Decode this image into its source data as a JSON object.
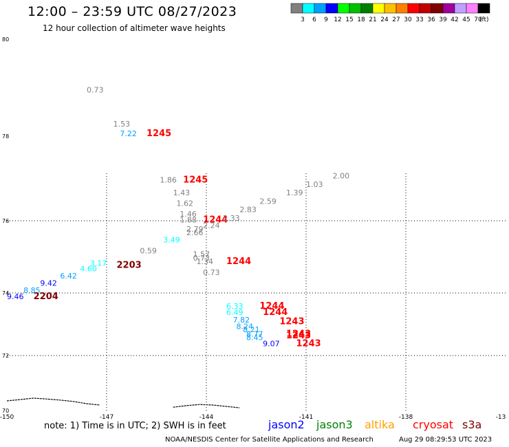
{
  "header": {
    "title": "12:00 – 23:59 UTC 08/27/2023",
    "subtitle": "12 hour collection of altimeter wave heights"
  },
  "colorbar": {
    "colors": [
      "#808080",
      "#00ffff",
      "#00a0ff",
      "#0000ff",
      "#00ff00",
      "#00c000",
      "#008000",
      "#ffff00",
      "#ffc000",
      "#ff8000",
      "#ff0000",
      "#c00000",
      "#800000",
      "#a000a0",
      "#c0a0ff",
      "#ff80ff",
      "#000000"
    ],
    "labels": [
      "3",
      "6",
      "9",
      "12",
      "15",
      "18",
      "21",
      "24",
      "27",
      "30",
      "33",
      "36",
      "39",
      "42",
      "45",
      "70",
      "(ft)"
    ]
  },
  "map": {
    "lat_labels": [
      {
        "lat": 80,
        "text": "80"
      },
      {
        "lat": 78,
        "text": "78"
      },
      {
        "lat": 76,
        "text": "76"
      },
      {
        "lat": 74,
        "text": "74"
      },
      {
        "lat": 72,
        "text": "72"
      },
      {
        "lat": 70,
        "text": "70"
      }
    ],
    "lon_labels": [
      {
        "lon": -150,
        "text": "-150"
      },
      {
        "lon": -147,
        "text": "-147"
      },
      {
        "lon": -144,
        "text": "-144"
      },
      {
        "lon": -141,
        "text": "-141"
      },
      {
        "lon": -138,
        "text": "-138"
      },
      {
        "lon": -135,
        "text": "-13"
      }
    ],
    "grid_lons": [
      -147,
      -144,
      -141,
      -138
    ],
    "grid_lats": [
      76,
      74,
      72
    ]
  },
  "observations": [
    {
      "text": "0.73",
      "lon": -147.6,
      "lat": 78.9,
      "color": "#808080"
    },
    {
      "text": "1.53",
      "lon": -146.8,
      "lat": 78.2,
      "color": "#808080"
    },
    {
      "text": "7.22",
      "lon": -146.6,
      "lat": 78.0,
      "color": "#00a0ff"
    },
    {
      "text": "1245",
      "lon": -145.8,
      "lat": 78.0,
      "color": "#ff0000",
      "time": true
    },
    {
      "text": "1.86",
      "lon": -145.4,
      "lat": 76.9,
      "color": "#808080"
    },
    {
      "text": "1245",
      "lon": -144.7,
      "lat": 76.9,
      "color": "#ff0000",
      "time": true
    },
    {
      "text": "1.43",
      "lon": -145.0,
      "lat": 76.6,
      "color": "#808080"
    },
    {
      "text": "1.62",
      "lon": -144.9,
      "lat": 76.35,
      "color": "#808080"
    },
    {
      "text": "1.46",
      "lon": -144.8,
      "lat": 76.1,
      "color": "#808080"
    },
    {
      "text": "1.88",
      "lon": -144.8,
      "lat": 75.95,
      "color": "#808080"
    },
    {
      "text": "1244",
      "lon": -144.1,
      "lat": 75.95,
      "color": "#ff0000",
      "time": true
    },
    {
      "text": "2.33",
      "lon": -143.5,
      "lat": 76.0,
      "color": "#808080"
    },
    {
      "text": "2.24",
      "lon": -144.1,
      "lat": 75.8,
      "color": "#808080"
    },
    {
      "text": "2.79",
      "lon": -144.6,
      "lat": 75.7,
      "color": "#808080"
    },
    {
      "text": "2.66",
      "lon": -144.6,
      "lat": 75.6,
      "color": "#808080"
    },
    {
      "text": "3.49",
      "lon": -145.3,
      "lat": 75.4,
      "color": "#00ffff"
    },
    {
      "text": "2.83",
      "lon": -143.0,
      "lat": 76.2,
      "color": "#808080"
    },
    {
      "text": "2.59",
      "lon": -142.4,
      "lat": 76.4,
      "color": "#808080"
    },
    {
      "text": "1.39",
      "lon": -141.6,
      "lat": 76.6,
      "color": "#808080"
    },
    {
      "text": "1.03",
      "lon": -141.0,
      "lat": 76.8,
      "color": "#808080"
    },
    {
      "text": "2.00",
      "lon": -140.2,
      "lat": 77.0,
      "color": "#808080"
    },
    {
      "text": "0.59",
      "lon": -146.0,
      "lat": 75.1,
      "color": "#808080"
    },
    {
      "text": "1.57",
      "lon": -144.4,
      "lat": 75.0,
      "color": "#808080"
    },
    {
      "text": "0.73",
      "lon": -144.4,
      "lat": 74.9,
      "color": "#808080"
    },
    {
      "text": "1.34",
      "lon": -144.3,
      "lat": 74.8,
      "color": "#808080"
    },
    {
      "text": "1244",
      "lon": -143.4,
      "lat": 74.8,
      "color": "#ff0000",
      "time": true
    },
    {
      "text": "0.73",
      "lon": -144.1,
      "lat": 74.5,
      "color": "#808080"
    },
    {
      "text": "3.17",
      "lon": -147.5,
      "lat": 74.75,
      "color": "#00ffff"
    },
    {
      "text": "4.60",
      "lon": -147.8,
      "lat": 74.6,
      "color": "#00ffff"
    },
    {
      "text": "2203",
      "lon": -146.7,
      "lat": 74.7,
      "color": "#800000",
      "time": true
    },
    {
      "text": "6.42",
      "lon": -148.4,
      "lat": 74.4,
      "color": "#00a0ff"
    },
    {
      "text": "9.42",
      "lon": -149.0,
      "lat": 74.2,
      "color": "#0000ff"
    },
    {
      "text": "8.85",
      "lon": -149.5,
      "lat": 74.0,
      "color": "#00a0ff"
    },
    {
      "text": "9.46",
      "lon": -150.0,
      "lat": 73.8,
      "color": "#0000ff"
    },
    {
      "text": "2204",
      "lon": -149.2,
      "lat": 73.8,
      "color": "#800000",
      "time": true
    },
    {
      "text": "6.33",
      "lon": -143.4,
      "lat": 73.5,
      "color": "#00ffff"
    },
    {
      "text": "1244",
      "lon": -142.4,
      "lat": 73.5,
      "color": "#ff0000",
      "time": true
    },
    {
      "text": "6.49",
      "lon": -143.4,
      "lat": 73.3,
      "color": "#00ffff"
    },
    {
      "text": "1244",
      "lon": -142.3,
      "lat": 73.3,
      "color": "#ff0000",
      "time": true
    },
    {
      "text": "7.82",
      "lon": -143.2,
      "lat": 73.05,
      "color": "#00a0ff"
    },
    {
      "text": "1243",
      "lon": -141.8,
      "lat": 73.0,
      "color": "#ff0000",
      "time": true
    },
    {
      "text": "8.24",
      "lon": -143.1,
      "lat": 72.85,
      "color": "#00a0ff"
    },
    {
      "text": "8.21",
      "lon": -142.9,
      "lat": 72.75,
      "color": "#00a0ff"
    },
    {
      "text": "8.77",
      "lon": -142.8,
      "lat": 72.6,
      "color": "#00a0ff"
    },
    {
      "text": "1243",
      "lon": -141.6,
      "lat": 72.6,
      "color": "#ff0000",
      "time": true
    },
    {
      "text": "8.45",
      "lon": -142.8,
      "lat": 72.5,
      "color": "#00a0ff"
    },
    {
      "text": "1243",
      "lon": -141.6,
      "lat": 72.55,
      "color": "#ff0000",
      "time": true
    },
    {
      "text": "9.07",
      "lon": -142.3,
      "lat": 72.3,
      "color": "#0000ff"
    },
    {
      "text": "1243",
      "lon": -141.3,
      "lat": 72.3,
      "color": "#ff0000",
      "time": true
    }
  ],
  "coastline": [
    [
      -150.0,
      70.35
    ],
    [
      -149.6,
      70.4
    ],
    [
      -149.2,
      70.45
    ],
    [
      -148.8,
      70.42
    ],
    [
      -148.4,
      70.38
    ],
    [
      -148.0,
      70.33
    ],
    [
      -147.6,
      70.25
    ],
    [
      -147.2,
      70.2
    ]
  ],
  "coastline2": [
    [
      -145.0,
      70.12
    ],
    [
      -144.6,
      70.18
    ],
    [
      -144.2,
      70.22
    ],
    [
      -143.8,
      70.2
    ],
    [
      -143.4,
      70.15
    ],
    [
      -143.0,
      70.1
    ]
  ],
  "note": "note:  1) Time is in UTC;  2) SWH is in feet",
  "satellites": [
    {
      "name": "jason2",
      "color": "#0000ff"
    },
    {
      "name": "jason3",
      "color": "#008000"
    },
    {
      "name": "altika",
      "color": "#ffa000"
    },
    {
      "name": "cryosat",
      "color": "#ff0000"
    },
    {
      "name": "s3a",
      "color": "#800000"
    }
  ],
  "footer": {
    "org": "NOAA/NESDIS Center for Satellite Applications and Research",
    "timestamp": "Aug 29 08:29:53 UTC 2023"
  }
}
